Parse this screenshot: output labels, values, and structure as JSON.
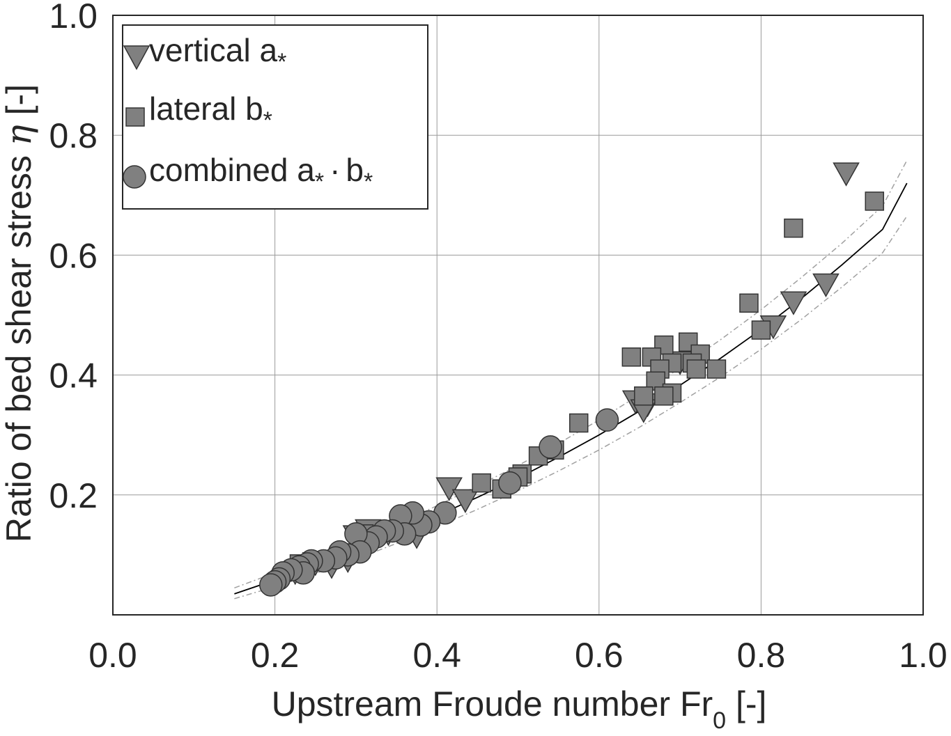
{
  "chart_data": {
    "type": "scatter",
    "xlabel": "Upstream Froude number Fr",
    "xlabel_sub": "0",
    "xlabel_suffix": " [-]",
    "ylabel": "Ratio of bed shear stress ",
    "ylabel_symbol": "η",
    "ylabel_suffix": " [-]",
    "xlim": [
      0.0,
      1.0
    ],
    "ylim": [
      0.0,
      1.0
    ],
    "x_ticks": [
      "0.0",
      "0.2",
      "0.4",
      "0.6",
      "0.8",
      "1.0"
    ],
    "y_ticks": [
      "0.2",
      "0.4",
      "0.6",
      "0.8",
      "1.0"
    ],
    "grid": true,
    "legend_position": "top-left",
    "colors": {
      "marker_fill": "#808080",
      "marker_edge": "#333333",
      "fit_line": "#000000",
      "bounds_line": "#a0a0a0",
      "grid": "#9a9a9a",
      "axes": "#262626"
    },
    "series": [
      {
        "name": "vertical a",
        "name_sub": "*",
        "marker": "triangle-down",
        "points": [
          [
            0.905,
            0.735
          ],
          [
            0.88,
            0.55
          ],
          [
            0.84,
            0.52
          ],
          [
            0.815,
            0.48
          ],
          [
            0.72,
            0.43
          ],
          [
            0.7,
            0.42
          ],
          [
            0.66,
            0.35
          ],
          [
            0.645,
            0.355
          ],
          [
            0.655,
            0.34
          ],
          [
            0.415,
            0.21
          ],
          [
            0.435,
            0.19
          ],
          [
            0.375,
            0.13
          ],
          [
            0.36,
            0.14
          ],
          [
            0.34,
            0.135
          ],
          [
            0.315,
            0.14
          ],
          [
            0.3,
            0.13
          ],
          [
            0.29,
            0.09
          ],
          [
            0.27,
            0.08
          ],
          [
            0.25,
            0.085
          ],
          [
            0.225,
            0.07
          ]
        ]
      },
      {
        "name": "lateral b",
        "name_sub": "*",
        "marker": "square",
        "points": [
          [
            0.94,
            0.69
          ],
          [
            0.84,
            0.645
          ],
          [
            0.785,
            0.52
          ],
          [
            0.8,
            0.475
          ],
          [
            0.71,
            0.455
          ],
          [
            0.68,
            0.45
          ],
          [
            0.64,
            0.43
          ],
          [
            0.665,
            0.43
          ],
          [
            0.725,
            0.435
          ],
          [
            0.715,
            0.42
          ],
          [
            0.72,
            0.41
          ],
          [
            0.745,
            0.41
          ],
          [
            0.69,
            0.42
          ],
          [
            0.675,
            0.41
          ],
          [
            0.67,
            0.39
          ],
          [
            0.69,
            0.37
          ],
          [
            0.68,
            0.365
          ],
          [
            0.655,
            0.365
          ],
          [
            0.575,
            0.32
          ],
          [
            0.545,
            0.275
          ],
          [
            0.525,
            0.265
          ],
          [
            0.505,
            0.235
          ],
          [
            0.5,
            0.23
          ],
          [
            0.455,
            0.22
          ],
          [
            0.48,
            0.21
          ],
          [
            0.31,
            0.135
          ],
          [
            0.23,
            0.085
          ]
        ]
      },
      {
        "name": "combined a",
        "name_mid": "·",
        "name_b": "b",
        "name_sub": "*",
        "marker": "circle",
        "points": [
          [
            0.61,
            0.325
          ],
          [
            0.54,
            0.28
          ],
          [
            0.49,
            0.22
          ],
          [
            0.41,
            0.17
          ],
          [
            0.39,
            0.155
          ],
          [
            0.38,
            0.15
          ],
          [
            0.37,
            0.17
          ],
          [
            0.355,
            0.165
          ],
          [
            0.36,
            0.135
          ],
          [
            0.345,
            0.14
          ],
          [
            0.335,
            0.14
          ],
          [
            0.325,
            0.13
          ],
          [
            0.315,
            0.12
          ],
          [
            0.3,
            0.135
          ],
          [
            0.305,
            0.105
          ],
          [
            0.29,
            0.1
          ],
          [
            0.28,
            0.105
          ],
          [
            0.275,
            0.095
          ],
          [
            0.26,
            0.09
          ],
          [
            0.245,
            0.09
          ],
          [
            0.24,
            0.085
          ],
          [
            0.23,
            0.08
          ],
          [
            0.235,
            0.07
          ],
          [
            0.22,
            0.075
          ],
          [
            0.21,
            0.07
          ],
          [
            0.205,
            0.06
          ],
          [
            0.2,
            0.055
          ],
          [
            0.195,
            0.05
          ]
        ]
      }
    ],
    "fit_curve": {
      "x": [
        0.15,
        0.2,
        0.25,
        0.3,
        0.35,
        0.4,
        0.45,
        0.5,
        0.55,
        0.6,
        0.65,
        0.7,
        0.75,
        0.8,
        0.85,
        0.9,
        0.95,
        0.98
      ],
      "y": [
        0.035,
        0.058,
        0.082,
        0.108,
        0.135,
        0.165,
        0.196,
        0.228,
        0.263,
        0.3,
        0.34,
        0.383,
        0.428,
        0.476,
        0.528,
        0.584,
        0.643,
        0.72
      ]
    },
    "upper_bound": {
      "x": [
        0.15,
        0.2,
        0.25,
        0.3,
        0.35,
        0.4,
        0.45,
        0.5,
        0.55,
        0.6,
        0.65,
        0.7,
        0.75,
        0.8,
        0.85,
        0.9,
        0.95,
        0.98
      ],
      "y": [
        0.045,
        0.07,
        0.095,
        0.122,
        0.151,
        0.182,
        0.215,
        0.249,
        0.286,
        0.325,
        0.367,
        0.412,
        0.459,
        0.509,
        0.563,
        0.62,
        0.682,
        0.758
      ]
    },
    "lower_bound": {
      "x": [
        0.15,
        0.2,
        0.25,
        0.3,
        0.35,
        0.4,
        0.45,
        0.5,
        0.55,
        0.6,
        0.65,
        0.7,
        0.75,
        0.8,
        0.85,
        0.9,
        0.95,
        0.98
      ],
      "y": [
        0.027,
        0.047,
        0.069,
        0.093,
        0.119,
        0.147,
        0.176,
        0.207,
        0.24,
        0.275,
        0.313,
        0.354,
        0.397,
        0.443,
        0.493,
        0.547,
        0.604,
        0.665
      ]
    }
  }
}
